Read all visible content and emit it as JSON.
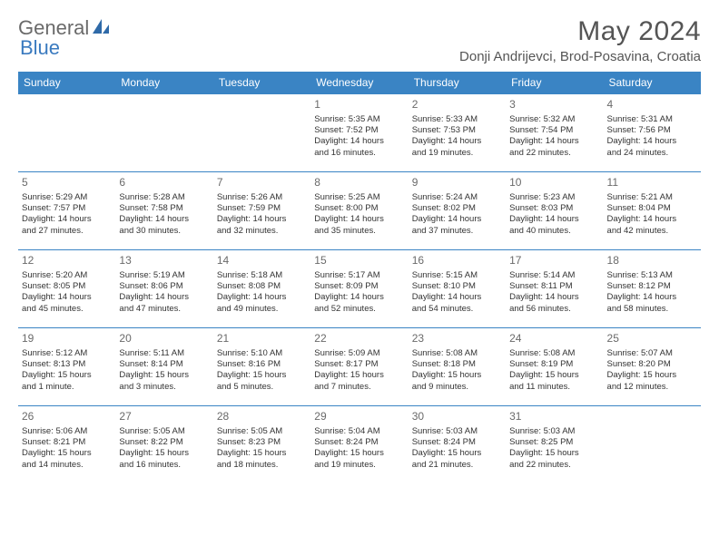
{
  "logo": {
    "text1": "General",
    "text2": "Blue"
  },
  "title": "May 2024",
  "location": "Donji Andrijevci, Brod-Posavina, Croatia",
  "colors": {
    "header_bg": "#3a84c4",
    "header_text": "#ffffff",
    "border": "#3a84c4",
    "title_color": "#555555",
    "logo_gray": "#6a6a6a",
    "logo_blue": "#3a7abf"
  },
  "day_names": [
    "Sunday",
    "Monday",
    "Tuesday",
    "Wednesday",
    "Thursday",
    "Friday",
    "Saturday"
  ],
  "weeks": [
    [
      {
        "day": ""
      },
      {
        "day": ""
      },
      {
        "day": ""
      },
      {
        "day": "1",
        "sunrise": "Sunrise: 5:35 AM",
        "sunset": "Sunset: 7:52 PM",
        "daylight1": "Daylight: 14 hours",
        "daylight2": "and 16 minutes."
      },
      {
        "day": "2",
        "sunrise": "Sunrise: 5:33 AM",
        "sunset": "Sunset: 7:53 PM",
        "daylight1": "Daylight: 14 hours",
        "daylight2": "and 19 minutes."
      },
      {
        "day": "3",
        "sunrise": "Sunrise: 5:32 AM",
        "sunset": "Sunset: 7:54 PM",
        "daylight1": "Daylight: 14 hours",
        "daylight2": "and 22 minutes."
      },
      {
        "day": "4",
        "sunrise": "Sunrise: 5:31 AM",
        "sunset": "Sunset: 7:56 PM",
        "daylight1": "Daylight: 14 hours",
        "daylight2": "and 24 minutes."
      }
    ],
    [
      {
        "day": "5",
        "sunrise": "Sunrise: 5:29 AM",
        "sunset": "Sunset: 7:57 PM",
        "daylight1": "Daylight: 14 hours",
        "daylight2": "and 27 minutes."
      },
      {
        "day": "6",
        "sunrise": "Sunrise: 5:28 AM",
        "sunset": "Sunset: 7:58 PM",
        "daylight1": "Daylight: 14 hours",
        "daylight2": "and 30 minutes."
      },
      {
        "day": "7",
        "sunrise": "Sunrise: 5:26 AM",
        "sunset": "Sunset: 7:59 PM",
        "daylight1": "Daylight: 14 hours",
        "daylight2": "and 32 minutes."
      },
      {
        "day": "8",
        "sunrise": "Sunrise: 5:25 AM",
        "sunset": "Sunset: 8:00 PM",
        "daylight1": "Daylight: 14 hours",
        "daylight2": "and 35 minutes."
      },
      {
        "day": "9",
        "sunrise": "Sunrise: 5:24 AM",
        "sunset": "Sunset: 8:02 PM",
        "daylight1": "Daylight: 14 hours",
        "daylight2": "and 37 minutes."
      },
      {
        "day": "10",
        "sunrise": "Sunrise: 5:23 AM",
        "sunset": "Sunset: 8:03 PM",
        "daylight1": "Daylight: 14 hours",
        "daylight2": "and 40 minutes."
      },
      {
        "day": "11",
        "sunrise": "Sunrise: 5:21 AM",
        "sunset": "Sunset: 8:04 PM",
        "daylight1": "Daylight: 14 hours",
        "daylight2": "and 42 minutes."
      }
    ],
    [
      {
        "day": "12",
        "sunrise": "Sunrise: 5:20 AM",
        "sunset": "Sunset: 8:05 PM",
        "daylight1": "Daylight: 14 hours",
        "daylight2": "and 45 minutes."
      },
      {
        "day": "13",
        "sunrise": "Sunrise: 5:19 AM",
        "sunset": "Sunset: 8:06 PM",
        "daylight1": "Daylight: 14 hours",
        "daylight2": "and 47 minutes."
      },
      {
        "day": "14",
        "sunrise": "Sunrise: 5:18 AM",
        "sunset": "Sunset: 8:08 PM",
        "daylight1": "Daylight: 14 hours",
        "daylight2": "and 49 minutes."
      },
      {
        "day": "15",
        "sunrise": "Sunrise: 5:17 AM",
        "sunset": "Sunset: 8:09 PM",
        "daylight1": "Daylight: 14 hours",
        "daylight2": "and 52 minutes."
      },
      {
        "day": "16",
        "sunrise": "Sunrise: 5:15 AM",
        "sunset": "Sunset: 8:10 PM",
        "daylight1": "Daylight: 14 hours",
        "daylight2": "and 54 minutes."
      },
      {
        "day": "17",
        "sunrise": "Sunrise: 5:14 AM",
        "sunset": "Sunset: 8:11 PM",
        "daylight1": "Daylight: 14 hours",
        "daylight2": "and 56 minutes."
      },
      {
        "day": "18",
        "sunrise": "Sunrise: 5:13 AM",
        "sunset": "Sunset: 8:12 PM",
        "daylight1": "Daylight: 14 hours",
        "daylight2": "and 58 minutes."
      }
    ],
    [
      {
        "day": "19",
        "sunrise": "Sunrise: 5:12 AM",
        "sunset": "Sunset: 8:13 PM",
        "daylight1": "Daylight: 15 hours",
        "daylight2": "and 1 minute."
      },
      {
        "day": "20",
        "sunrise": "Sunrise: 5:11 AM",
        "sunset": "Sunset: 8:14 PM",
        "daylight1": "Daylight: 15 hours",
        "daylight2": "and 3 minutes."
      },
      {
        "day": "21",
        "sunrise": "Sunrise: 5:10 AM",
        "sunset": "Sunset: 8:16 PM",
        "daylight1": "Daylight: 15 hours",
        "daylight2": "and 5 minutes."
      },
      {
        "day": "22",
        "sunrise": "Sunrise: 5:09 AM",
        "sunset": "Sunset: 8:17 PM",
        "daylight1": "Daylight: 15 hours",
        "daylight2": "and 7 minutes."
      },
      {
        "day": "23",
        "sunrise": "Sunrise: 5:08 AM",
        "sunset": "Sunset: 8:18 PM",
        "daylight1": "Daylight: 15 hours",
        "daylight2": "and 9 minutes."
      },
      {
        "day": "24",
        "sunrise": "Sunrise: 5:08 AM",
        "sunset": "Sunset: 8:19 PM",
        "daylight1": "Daylight: 15 hours",
        "daylight2": "and 11 minutes."
      },
      {
        "day": "25",
        "sunrise": "Sunrise: 5:07 AM",
        "sunset": "Sunset: 8:20 PM",
        "daylight1": "Daylight: 15 hours",
        "daylight2": "and 12 minutes."
      }
    ],
    [
      {
        "day": "26",
        "sunrise": "Sunrise: 5:06 AM",
        "sunset": "Sunset: 8:21 PM",
        "daylight1": "Daylight: 15 hours",
        "daylight2": "and 14 minutes."
      },
      {
        "day": "27",
        "sunrise": "Sunrise: 5:05 AM",
        "sunset": "Sunset: 8:22 PM",
        "daylight1": "Daylight: 15 hours",
        "daylight2": "and 16 minutes."
      },
      {
        "day": "28",
        "sunrise": "Sunrise: 5:05 AM",
        "sunset": "Sunset: 8:23 PM",
        "daylight1": "Daylight: 15 hours",
        "daylight2": "and 18 minutes."
      },
      {
        "day": "29",
        "sunrise": "Sunrise: 5:04 AM",
        "sunset": "Sunset: 8:24 PM",
        "daylight1": "Daylight: 15 hours",
        "daylight2": "and 19 minutes."
      },
      {
        "day": "30",
        "sunrise": "Sunrise: 5:03 AM",
        "sunset": "Sunset: 8:24 PM",
        "daylight1": "Daylight: 15 hours",
        "daylight2": "and 21 minutes."
      },
      {
        "day": "31",
        "sunrise": "Sunrise: 5:03 AM",
        "sunset": "Sunset: 8:25 PM",
        "daylight1": "Daylight: 15 hours",
        "daylight2": "and 22 minutes."
      },
      {
        "day": ""
      }
    ]
  ]
}
